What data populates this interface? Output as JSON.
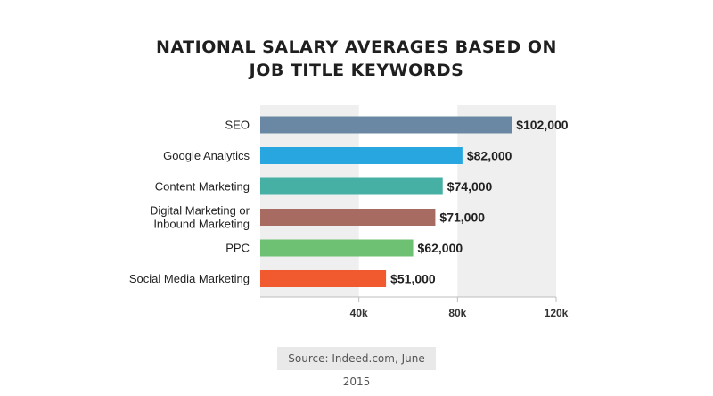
{
  "title_lines": [
    "NATIONAL SALARY AVERAGES BASED ON",
    "JOB TITLE KEYWORDS"
  ],
  "source": "Source: Indeed.com, June 2015",
  "chart_data": {
    "type": "bar",
    "orientation": "horizontal",
    "title": "NATIONAL SALARY AVERAGES BASED ON JOB TITLE KEYWORDS",
    "categories": [
      "SEO",
      "Google Analytics",
      "Content Marketing",
      "Digital Marketing or Inbound Marketing",
      "PPC",
      "Social Media Marketing"
    ],
    "category_lines": [
      [
        "SEO"
      ],
      [
        "Google Analytics"
      ],
      [
        "Content Marketing"
      ],
      [
        "Digital Marketing or",
        "Inbound Marketing"
      ],
      [
        "PPC"
      ],
      [
        "Social Media Marketing"
      ]
    ],
    "values": [
      102000,
      82000,
      74000,
      71000,
      62000,
      51000
    ],
    "value_labels": [
      "$102,000",
      "$82,000",
      "$74,000",
      "$71,000",
      "$62,000",
      "$51,000"
    ],
    "colors": [
      "#6a88a3",
      "#27a6e0",
      "#46b0a5",
      "#a86b62",
      "#6ec072",
      "#f15a2e"
    ],
    "xlim": [
      0,
      120000
    ],
    "xticks": [
      40000,
      80000,
      120000
    ],
    "xtick_labels": [
      "40k",
      "80k",
      "120k"
    ],
    "band_color": "#efefef"
  }
}
